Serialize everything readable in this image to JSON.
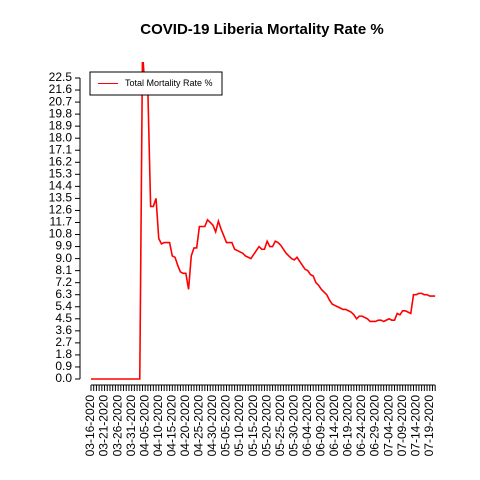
{
  "chart_data": {
    "type": "line",
    "title": "COVID-19 Liberia Mortality Rate %",
    "legend_position": "top-left",
    "categories": [
      "03-16-2020",
      null,
      null,
      null,
      null,
      "03-21-2020",
      null,
      null,
      null,
      null,
      "03-26-2020",
      null,
      null,
      null,
      null,
      "03-31-2020",
      null,
      null,
      null,
      null,
      "04-05-2020",
      null,
      null,
      null,
      null,
      "04-10-2020",
      null,
      null,
      null,
      null,
      "04-15-2020",
      null,
      null,
      null,
      null,
      "04-20-2020",
      null,
      null,
      null,
      null,
      "04-25-2020",
      null,
      null,
      null,
      null,
      "04-30-2020",
      null,
      null,
      null,
      null,
      "05-05-2020",
      null,
      null,
      null,
      null,
      "05-10-2020",
      null,
      null,
      null,
      null,
      "05-15-2020",
      null,
      null,
      null,
      null,
      "05-20-2020",
      null,
      null,
      null,
      null,
      "05-25-2020",
      null,
      null,
      null,
      null,
      "05-30-2020",
      null,
      null,
      null,
      null,
      "06-04-2020",
      null,
      null,
      null,
      null,
      "06-09-2020",
      null,
      null,
      null,
      null,
      "06-14-2020",
      null,
      null,
      null,
      null,
      "06-19-2020",
      null,
      null,
      null,
      null,
      "06-24-2020",
      null,
      null,
      null,
      null,
      "06-29-2020",
      null,
      null,
      null,
      null,
      "07-04-2020",
      null,
      null,
      null,
      null,
      "07-09-2020",
      null,
      null,
      null,
      null,
      "07-14-2020",
      null,
      null,
      null,
      null,
      "07-19-2020",
      null,
      null
    ],
    "series": [
      {
        "name": "Total Mortality Rate %",
        "color": "#ff0000",
        "values": [
          0,
          0,
          0,
          0,
          0,
          0,
          0,
          0,
          0,
          0,
          0,
          0,
          0,
          0,
          0,
          0,
          0,
          0,
          0,
          24.5,
          21.4,
          21.4,
          12.9,
          12.9,
          13.5,
          10.5,
          10.1,
          10.2,
          10.2,
          10.2,
          9.2,
          9.1,
          8.5,
          8.0,
          7.9,
          7.9,
          6.7,
          9.2,
          9.8,
          9.8,
          11.4,
          11.4,
          11.4,
          11.9,
          11.7,
          11.5,
          11.0,
          11.8,
          11.2,
          10.7,
          10.2,
          10.2,
          10.2,
          9.7,
          9.6,
          9.5,
          9.4,
          9.2,
          9.1,
          9.0,
          9.3,
          9.6,
          9.9,
          9.7,
          9.7,
          10.3,
          9.9,
          9.9,
          10.3,
          10.2,
          10.0,
          9.7,
          9.4,
          9.2,
          9.0,
          8.9,
          9.1,
          8.8,
          8.5,
          8.2,
          8.1,
          7.8,
          7.7,
          7.2,
          7.0,
          6.7,
          6.5,
          6.3,
          5.9,
          5.6,
          5.5,
          5.4,
          5.3,
          5.2,
          5.2,
          5.1,
          5.0,
          4.8,
          4.5,
          4.7,
          4.7,
          4.6,
          4.5,
          4.3,
          4.3,
          4.3,
          4.4,
          4.4,
          4.3,
          4.4,
          4.5,
          4.4,
          4.4,
          4.9,
          4.8,
          5.1,
          5.1,
          5.0,
          4.9,
          6.3,
          6.3,
          6.4,
          6.4,
          6.3,
          6.3,
          6.2,
          6.2,
          6.2
        ]
      }
    ],
    "ylim": [
      0,
      22.5
    ],
    "yticks": [
      {
        "value": 0,
        "label": "0.0"
      },
      {
        "value": 0.9,
        "label": "0.9"
      },
      {
        "value": 1.8,
        "label": "1.8"
      },
      {
        "value": 2.7,
        "label": "2.7"
      },
      {
        "value": 3.6,
        "label": "3.6"
      },
      {
        "value": 4.5,
        "label": "4.5"
      },
      {
        "value": 5.4,
        "label": "5.4"
      },
      {
        "value": 6.3,
        "label": "6.3"
      },
      {
        "value": 7.2,
        "label": "7.2"
      },
      {
        "value": 8.1,
        "label": "8.1"
      },
      {
        "value": 9,
        "label": "9.0"
      },
      {
        "value": 9.9,
        "label": "9.9"
      },
      {
        "value": 10.8,
        "label": "10.8"
      },
      {
        "value": 11.7,
        "label": "11.7"
      },
      {
        "value": 12.6,
        "label": "12.6"
      },
      {
        "value": 13.5,
        "label": "13.5"
      },
      {
        "value": 14.4,
        "label": "14.4"
      },
      {
        "value": 15.3,
        "label": "15.3"
      },
      {
        "value": 16.2,
        "label": "16.2"
      },
      {
        "value": 17.1,
        "label": "17.1"
      },
      {
        "value": 18,
        "label": "18.0"
      },
      {
        "value": 18.9,
        "label": "18.9"
      },
      {
        "value": 19.8,
        "label": "19.8"
      },
      {
        "value": 20.7,
        "label": "20.7"
      },
      {
        "value": 21.6,
        "label": "21.6"
      },
      {
        "value": 22.5,
        "label": "22.5"
      }
    ]
  }
}
